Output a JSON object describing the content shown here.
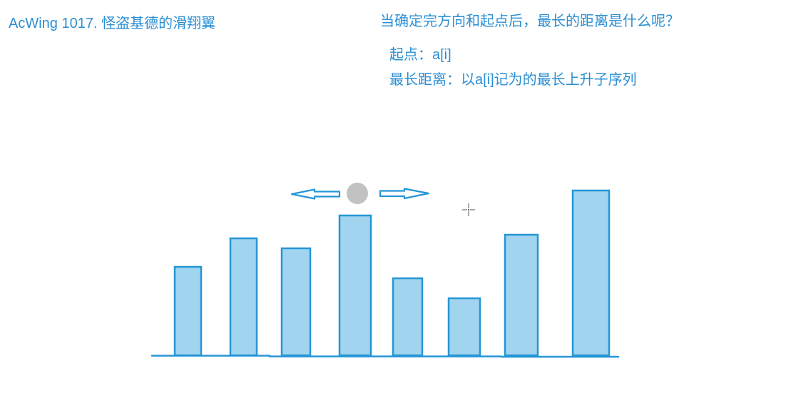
{
  "title": "AcWing 1017. 怪盗基德的滑翔翼",
  "question": "当确定完方向和起点后，最长的距离是什么呢？",
  "notes": [
    {
      "text": "起点：a[i]"
    },
    {
      "text": "最长距离：以a[i]记为的最长上升子序列"
    }
  ],
  "colors": {
    "text": "#2b8fd3",
    "bar_fill": "#a0d4ef",
    "bar_stroke": "#2596d6",
    "ball": "#c2c2c2"
  },
  "icons": {
    "left": "left-arrow-icon",
    "right": "right-arrow-icon",
    "start": "start-point-ball",
    "cursor": "crosshair-cursor-icon"
  }
}
